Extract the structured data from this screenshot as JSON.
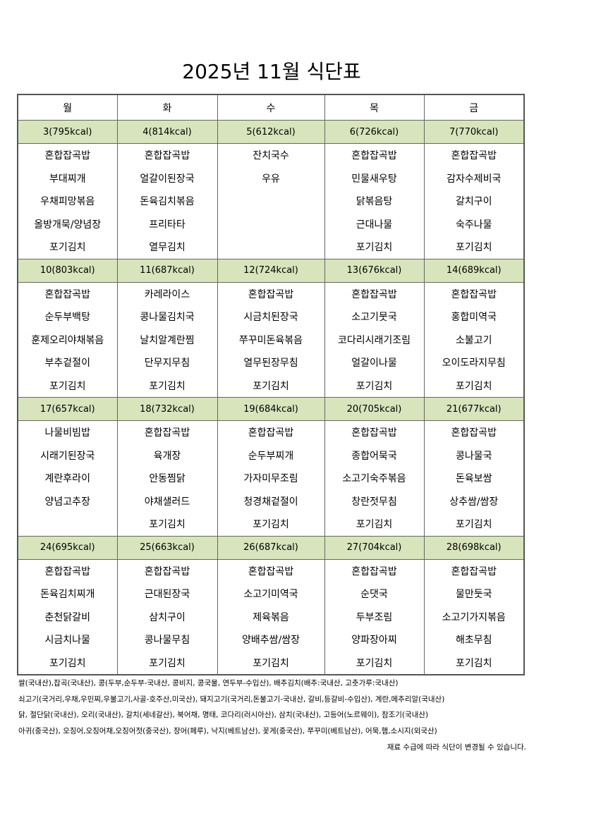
{
  "title": "2025년 11월 식단표",
  "days": [
    "월",
    "화",
    "수",
    "목",
    "금"
  ],
  "weeks": [
    {
      "dates": [
        "3(795kcal)",
        "4(814kcal)",
        "5(612kcal)",
        "6(726kcal)",
        "7(770kcal)"
      ],
      "menus": [
        [
          "혼합잡곡밥",
          "부대찌개",
          "우채피망볶음",
          "올방개묵/양념장",
          "포기김치"
        ],
        [
          "혼합잡곡밥",
          "얼갈이된장국",
          "돈육김치볶음",
          "프리타타",
          "열무김치"
        ],
        [
          "잔치국수",
          "우유",
          "",
          "",
          ""
        ],
        [
          "혼합잡곡밥",
          "민물새우탕",
          "닭볶음탕",
          "근대나물",
          "포기김치"
        ],
        [
          "혼합잡곡밥",
          "감자수제비국",
          "갈치구이",
          "숙주나물",
          "포기김치"
        ]
      ]
    },
    {
      "dates": [
        "10(803kcal)",
        "11(687kcal)",
        "12(724kcal)",
        "13(676kcal)",
        "14(689kcal)"
      ],
      "menus": [
        [
          "혼합잡곡밥",
          "순두부백탕",
          "훈제오리야채볶음",
          "부추겉절이",
          "포기김치"
        ],
        [
          "카레라이스",
          "콩나물김치국",
          "날치알계란찜",
          "단무지무침",
          "포기김치"
        ],
        [
          "혼합잡곡밥",
          "시금치된장국",
          "쭈꾸미돈육볶음",
          "열무된장무침",
          "포기김치"
        ],
        [
          "혼합잡곡밥",
          "소고기뭇국",
          "코다리시래기조림",
          "얼갈이나물",
          "포기김치"
        ],
        [
          "혼합잡곡밥",
          "홍합미역국",
          "소불고기",
          "오이도라지무침",
          "포기김치"
        ]
      ]
    },
    {
      "dates": [
        "17(657kcal)",
        "18(732kcal)",
        "19(684kcal)",
        "20(705kcal)",
        "21(677kcal)"
      ],
      "menus": [
        [
          "나물비빔밥",
          "시래기된장국",
          "계란후라이",
          "양념고추장",
          ""
        ],
        [
          "혼합잡곡밥",
          "육개장",
          "안동찜닭",
          "야채샐러드",
          "포기김치"
        ],
        [
          "혼합잡곡밥",
          "순두부찌개",
          "가자미무조림",
          "청경채겉절이",
          "포기김치"
        ],
        [
          "혼합잡곡밥",
          "종합어묵국",
          "소고기숙주볶음",
          "창란젓무침",
          "포기김치"
        ],
        [
          "혼합잡곡밥",
          "콩나물국",
          "돈육보쌈",
          "상추쌈/쌈장",
          "포기김치"
        ]
      ]
    },
    {
      "dates": [
        "24(695kcal)",
        "25(663kcal)",
        "26(687kcal)",
        "27(704kcal)",
        "28(698kcal)"
      ],
      "menus": [
        [
          "혼합잡곡밥",
          "돈육김치찌개",
          "춘천닭갈비",
          "시금치나물",
          "포기김치"
        ],
        [
          "혼합잡곡밥",
          "근대된장국",
          "삼치구이",
          "콩나물무침",
          "포기김치"
        ],
        [
          "혼합잡곡밥",
          "소고기미역국",
          "제육볶음",
          "양배추쌈/쌈장",
          "포기김치"
        ],
        [
          "혼합잡곡밥",
          "순댓국",
          "두부조림",
          "양파장아찌",
          "포기김치"
        ],
        [
          "혼합잡곡밥",
          "물만둣국",
          "소고기가지볶음",
          "해초무침",
          "포기김치"
        ]
      ]
    }
  ],
  "notes": [
    "쌀(국내산),잡곡(국내산), 콩(두부,순두부-국내산, 콩비지, 콩국물, 연두부-수입산), 배추김치(배추:국내산, 고춧가루:국내산)",
    "쇠고기(국거리,우채,우민찌,우불고기,사골-호주산,미국산), 돼지고기(국거리,돈불고기-국내산, 갈비,등갈비-수입산), 계란,메추리알(국내산)",
    "닭, 절단닭(국내산), 오리(국내산), 갈치(세네갈산), 북어채, 명태, 코다리(러시아산), 삼치(국내산), 고등어(노르웨이), 참조기(국내산)",
    "아귀(중국산), 오징어,오징어채,오징어젓(중국산), 장어(페루), 낙지(베트남산), 꽃게(중국산), 쭈꾸미(베트남산), 어묵,햄,소시지(외국산)"
  ],
  "disclaimer": "재료 수급에 따라 식단이 변경될 수 있습니다.",
  "colors": {
    "date_row": "#d8e4bc"
  }
}
